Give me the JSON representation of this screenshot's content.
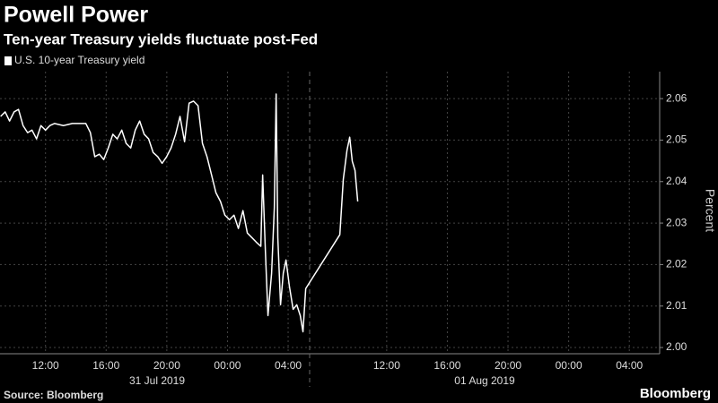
{
  "chart_data": {
    "type": "line",
    "title": "Powell Power",
    "subtitle": "Ten-year Treasury yields fluctuate post-Fed",
    "y_axis_label": "Percent",
    "source": "Source: Bloomberg",
    "brand": "Bloomberg",
    "date_labels": [
      "31 Jul 2019",
      "01 Aug 2019"
    ],
    "xlim": [
      9,
      52.5
    ],
    "xticks": [
      {
        "value": 12,
        "label": "12:00"
      },
      {
        "value": 16,
        "label": "16:00"
      },
      {
        "value": 20,
        "label": "20:00"
      },
      {
        "value": 24,
        "label": "00:00"
      },
      {
        "value": 28,
        "label": "04:00"
      },
      {
        "value": 34.5,
        "label": "12:00"
      },
      {
        "value": 38.5,
        "label": "16:00"
      },
      {
        "value": 42.5,
        "label": "20:00"
      },
      {
        "value": 46.5,
        "label": "00:00"
      },
      {
        "value": 50.5,
        "label": "04:00"
      }
    ],
    "ylim": [
      1.9985,
      2.0665
    ],
    "yticks": [
      {
        "value": 2,
        "label": "2.00"
      },
      2.01,
      2.02,
      2.03,
      2.04,
      2.05,
      2.06
    ],
    "grid": true,
    "x": [
      9.04,
      9.34,
      9.63,
      9.93,
      10.22,
      10.52,
      10.82,
      11.11,
      11.41,
      11.7,
      12.0,
      12.29,
      12.59,
      13.18,
      13.77,
      14.66,
      14.96,
      15.25,
      15.55,
      15.84,
      16.14,
      16.44,
      16.73,
      17.03,
      17.32,
      17.62,
      17.92,
      18.21,
      18.51,
      18.8,
      19.1,
      19.4,
      19.69,
      19.99,
      20.28,
      20.58,
      20.87,
      21.17,
      21.47,
      21.76,
      22.06,
      22.35,
      22.65,
      22.95,
      23.24,
      23.54,
      23.83,
      24.13,
      24.43,
      24.72,
      25.02,
      25.31,
      25.61,
      25.9,
      26.2,
      26.32,
      26.5,
      26.67,
      26.91,
      27.09,
      27.21,
      27.32,
      27.5,
      27.68,
      27.86,
      28.09,
      28.33,
      28.57,
      28.8,
      28.98,
      29.16,
      31.41,
      31.64,
      31.88,
      32.06,
      32.23,
      32.41,
      32.59
    ],
    "series": [
      {
        "name": "U.S. 10-year Treasury yield",
        "color": "#ffffff",
        "values": [
          2.0557,
          2.0568,
          2.0546,
          2.0568,
          2.0574,
          2.0535,
          2.0518,
          2.0524,
          2.0503,
          2.0535,
          2.0524,
          2.0535,
          2.054,
          2.0535,
          2.054,
          2.054,
          2.0518,
          2.046,
          2.0466,
          2.0453,
          2.0481,
          2.0514,
          2.0503,
          2.0524,
          2.0492,
          2.0481,
          2.0524,
          2.0546,
          2.0514,
          2.0503,
          2.047,
          2.046,
          2.0444,
          2.046,
          2.0481,
          2.0514,
          2.0557,
          2.0496,
          2.0589,
          2.0594,
          2.0583,
          2.0492,
          2.046,
          2.0416,
          2.0373,
          2.0352,
          2.0319,
          2.0308,
          2.0319,
          2.0287,
          2.033,
          2.0276,
          2.0265,
          2.0254,
          2.0244,
          2.0416,
          2.0233,
          2.0077,
          2.0179,
          2.0337,
          2.0611,
          2.0265,
          2.0103,
          2.0179,
          2.0211,
          2.0146,
          2.0092,
          2.0103,
          2.0077,
          2.0038,
          2.0142,
          2.0272,
          2.0406,
          2.0475,
          2.0507,
          2.0449,
          2.0427,
          2.0352
        ]
      }
    ]
  }
}
